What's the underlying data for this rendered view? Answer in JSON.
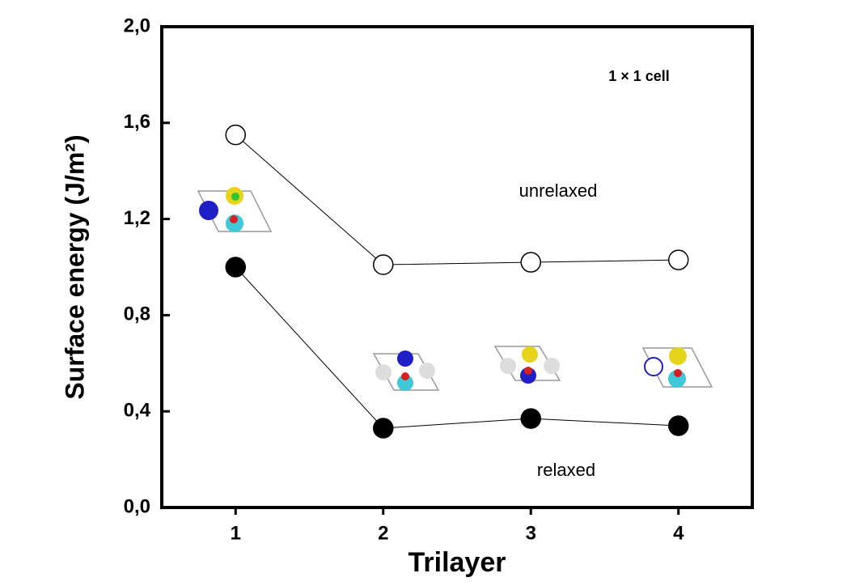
{
  "chart_data": {
    "type": "line",
    "x_label": "Trilayer",
    "y_label": "Surface energy (J/m²)",
    "annotation": "1 × 1 cell",
    "x": [
      1,
      2,
      3,
      4
    ],
    "series": [
      {
        "name": "unrelaxed",
        "color": "#000000",
        "marker_fill": "#ffffff",
        "values": [
          1.55,
          1.01,
          1.02,
          1.03
        ]
      },
      {
        "name": "relaxed",
        "color": "#000000",
        "marker_fill": "#000000",
        "values": [
          1.0,
          0.33,
          0.37,
          0.34
        ]
      }
    ],
    "xlim": [
      0.5,
      4.5
    ],
    "ylim": [
      0,
      2.0
    ],
    "xticks": [
      1,
      2,
      3,
      4
    ],
    "yticks": [
      {
        "value": 0,
        "label": "0,0"
      },
      {
        "value": 0.4,
        "label": "0,4"
      },
      {
        "value": 0.8,
        "label": "0,8"
      },
      {
        "value": 1.2,
        "label": "1,2"
      },
      {
        "value": 1.6,
        "label": "1,6"
      },
      {
        "value": 2.0,
        "label": "2,0"
      }
    ],
    "grid": false
  }
}
